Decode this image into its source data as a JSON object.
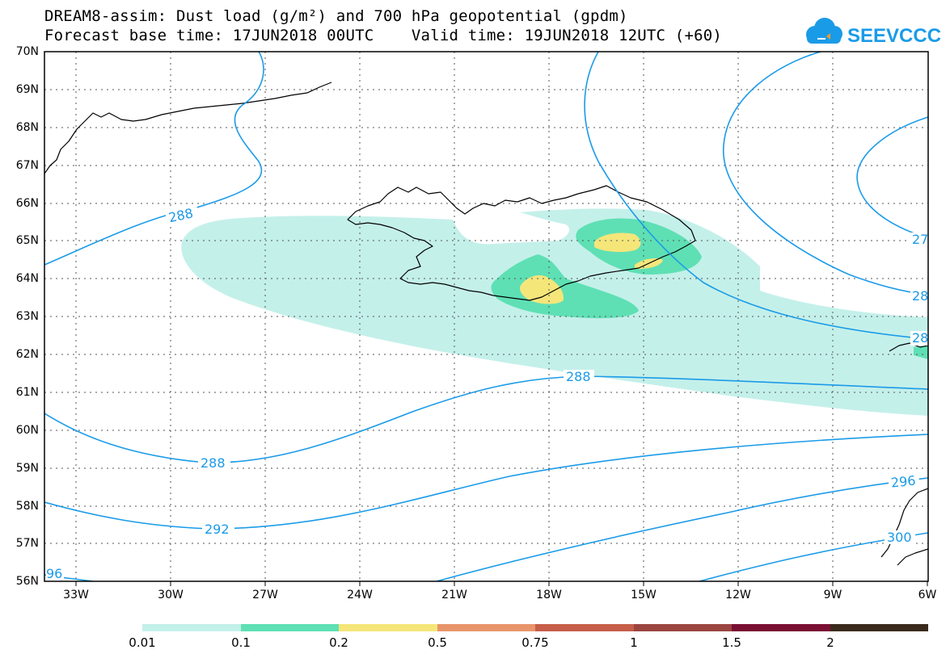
{
  "title_line1": "DREAM8-assim: Dust load (g/m²) and 700 hPa geopotential (gpdm)",
  "title_line2": "Forecast base time: 17JUN2018 00UTC    Valid time: 19JUN2018 12UTC (+60)",
  "logo_text": "SEEVCCC",
  "lat_labels": [
    "70N",
    "69N",
    "68N",
    "67N",
    "66N",
    "65N",
    "64N",
    "63N",
    "62N",
    "61N",
    "60N",
    "59N",
    "58N",
    "57N",
    "56N"
  ],
  "lon_labels": [
    "33W",
    "30W",
    "27W",
    "24W",
    "21W",
    "18W",
    "15W",
    "12W",
    "9W",
    "6W"
  ],
  "contour_labels": {
    "c288_a": "288",
    "c288_b": "288",
    "c288_c": "288",
    "c292": "292",
    "c296_left": "96",
    "c296_right": "296",
    "c300": "300",
    "c27_edge": "27",
    "c28_edge1": "28",
    "c28_edge2": "28"
  },
  "colorbar": {
    "labels": [
      "0.01",
      "0.1",
      "0.2",
      "0.5",
      "0.75",
      "1",
      "1.5",
      "2"
    ],
    "colors": [
      "#c4f0ea",
      "#5ee0b4",
      "#f5e67a",
      "#e8956c",
      "#c65e4a",
      "#9b4540",
      "#7a0f33",
      "#3a2a1c",
      "#9a70a6"
    ]
  },
  "colors": {
    "contour": "#1a9be8",
    "dust_01": "#c4f0ea",
    "dust_02": "#5ee0b4",
    "dust_05": "#f5e67a",
    "logo_blue": "#1a9be8",
    "logo_orange": "#f39a2a"
  }
}
